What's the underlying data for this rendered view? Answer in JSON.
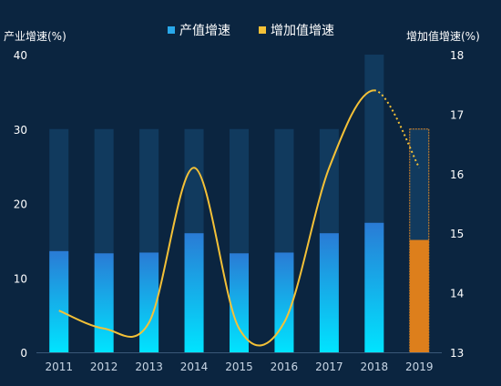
{
  "colors": {
    "background": "#0b2540",
    "bar_track": "#113a5e",
    "bar_top": "#2a7bd5",
    "bar_bottom": "#00e4ff",
    "forecast_bar": "#dd7f1c",
    "forecast_border": "#e08a2a",
    "line": "#f4c137",
    "legend_bar_swatch": "#29a8ea",
    "legend_line_swatch": "#f4c137",
    "axis_text": "#ffffff",
    "tick_text": "#c8d6e5",
    "axis_line": "#3a5878"
  },
  "chart_data": {
    "type": "bar",
    "categories": [
      "2011",
      "2012",
      "2013",
      "2014",
      "2015",
      "2016",
      "2017",
      "2018",
      "2019"
    ],
    "legend": {
      "bar_label": "产值增速",
      "line_label": "增加值增速",
      "position": "top-center"
    },
    "left_axis": {
      "label": "产业增速(%)",
      "min": 0,
      "max": 40,
      "ticks": [
        0,
        10,
        20,
        30,
        40
      ]
    },
    "right_axis": {
      "label": "增加值增速(%)",
      "min": 13,
      "max": 18,
      "ticks": [
        13,
        14,
        15,
        16,
        17,
        18
      ]
    },
    "series": [
      {
        "name": "产值增速",
        "type": "bar",
        "axis": "left",
        "values": [
          13.6,
          13.3,
          13.4,
          16.0,
          13.3,
          13.4,
          16.0,
          17.4,
          15.1
        ],
        "track_values": [
          30,
          30,
          30,
          30,
          30,
          30,
          30,
          40,
          30
        ],
        "forecast_index": 8
      },
      {
        "name": "增加值增速",
        "type": "line",
        "axis": "right",
        "smooth": true,
        "values": [
          13.7,
          13.4,
          13.5,
          16.1,
          13.4,
          13.5,
          16.1,
          17.4,
          16.1
        ],
        "forecast_from_index": 7
      }
    ],
    "grid": false
  }
}
